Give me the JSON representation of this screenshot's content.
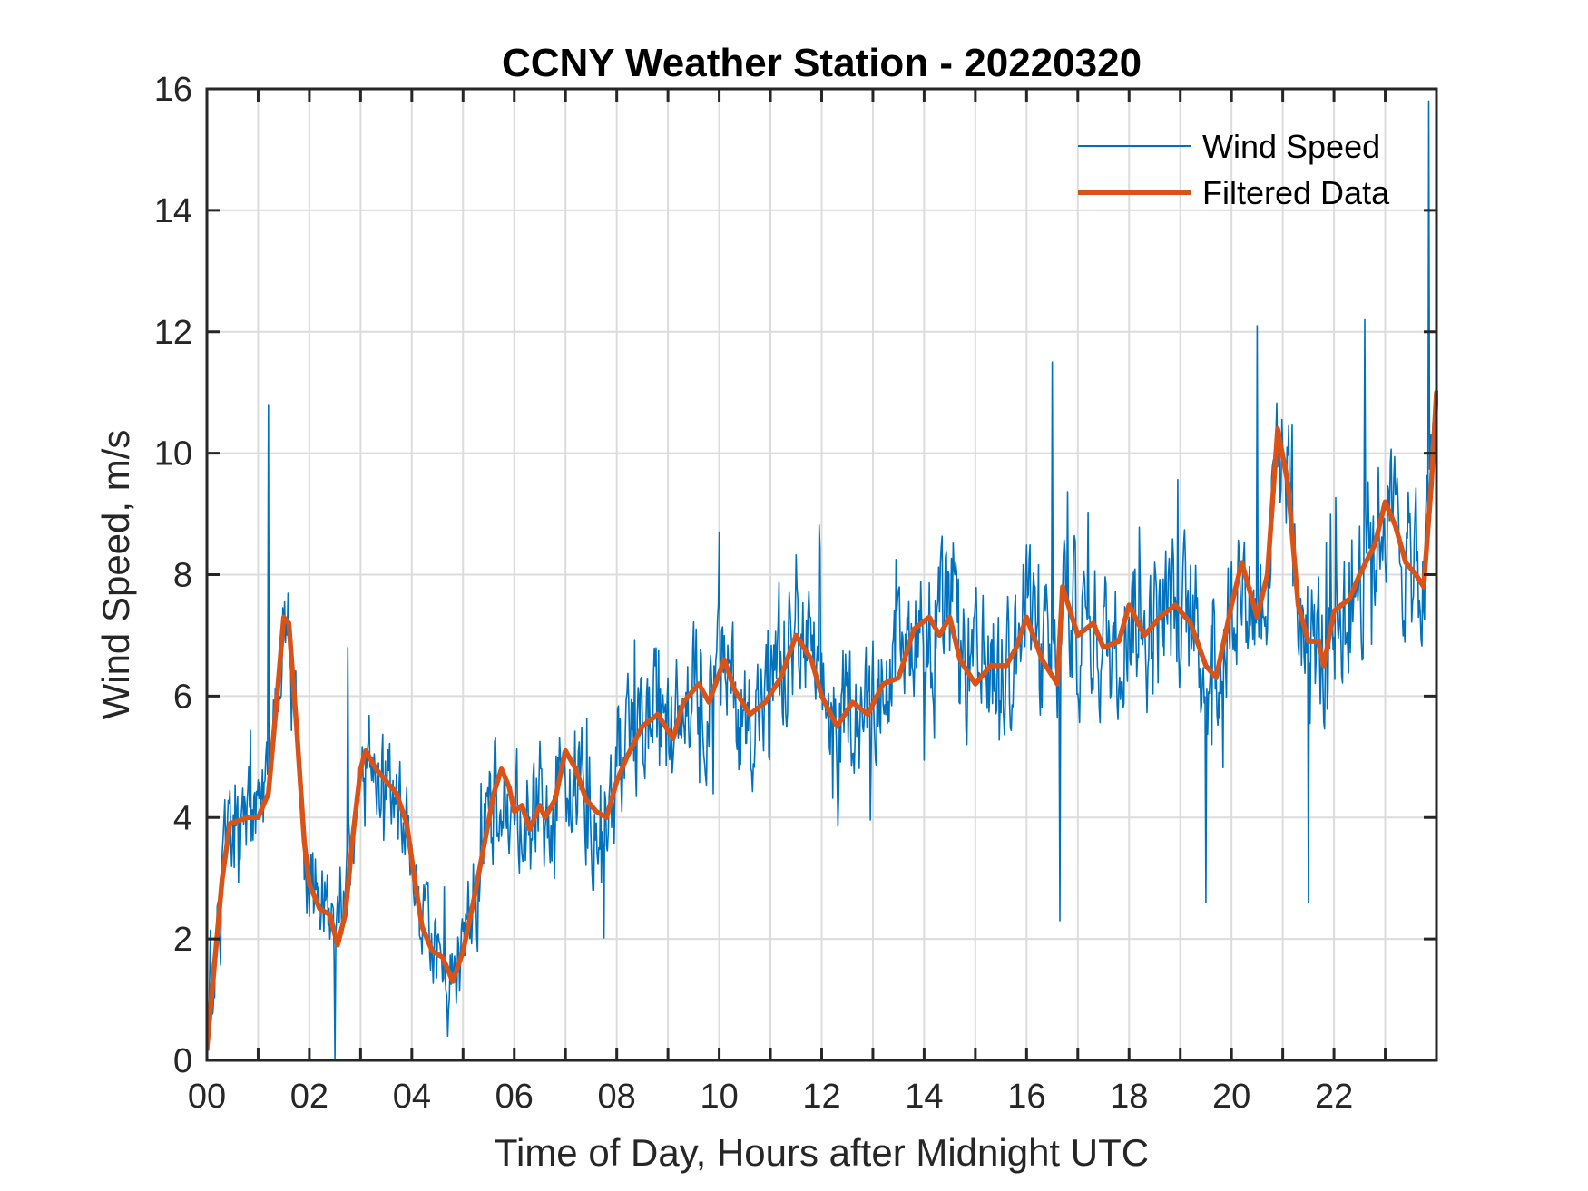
{
  "chart_data": {
    "type": "line",
    "title": "CCNY Weather Station - 20220320",
    "xlabel": "Time of Day, Hours after Midnight UTC",
    "ylabel": "Wind Speed, m/s",
    "xlim": [
      0,
      24
    ],
    "ylim": [
      0,
      16
    ],
    "x_ticks": [
      0,
      2,
      4,
      6,
      8,
      10,
      12,
      14,
      16,
      18,
      20,
      22
    ],
    "x_tick_labels": [
      "00",
      "02",
      "04",
      "06",
      "08",
      "10",
      "12",
      "14",
      "16",
      "18",
      "20",
      "22"
    ],
    "x_minor_grid_step_hours": 1,
    "y_ticks": [
      0,
      2,
      4,
      6,
      8,
      10,
      12,
      14,
      16
    ],
    "y_tick_labels": [
      "0",
      "2",
      "4",
      "6",
      "8",
      "10",
      "12",
      "14",
      "16"
    ],
    "grid": true,
    "legend": {
      "placement": "top-right",
      "entries": [
        "Wind Speed",
        "Filtered Data"
      ]
    },
    "series": [
      {
        "name": "Wind Speed",
        "color": "#0072BD",
        "style": "thin-line",
        "description": "High-frequency raw wind speed samples fluctuating around the filtered curve",
        "noise_amplitude_m_s": 1.6,
        "notable_spikes": [
          {
            "x": 1.2,
            "y": 10.8
          },
          {
            "x": 2.75,
            "y": 6.8
          },
          {
            "x": 2.5,
            "y": 0.0
          },
          {
            "x": 4.7,
            "y": 0.4
          },
          {
            "x": 10.0,
            "y": 8.7
          },
          {
            "x": 16.5,
            "y": 11.5
          },
          {
            "x": 16.65,
            "y": 2.3
          },
          {
            "x": 19.5,
            "y": 2.6
          },
          {
            "x": 20.5,
            "y": 12.1
          },
          {
            "x": 21.5,
            "y": 2.6
          },
          {
            "x": 22.6,
            "y": 12.2
          },
          {
            "x": 23.85,
            "y": 15.8
          }
        ]
      },
      {
        "name": "Filtered Data",
        "color": "#D95319",
        "style": "thick-line",
        "x": [
          0,
          0.3,
          0.45,
          0.8,
          1.0,
          1.2,
          1.35,
          1.5,
          1.6,
          1.75,
          1.9,
          2.0,
          2.2,
          2.4,
          2.55,
          2.7,
          2.85,
          3.0,
          3.1,
          3.3,
          3.5,
          3.7,
          3.9,
          4.05,
          4.2,
          4.4,
          4.6,
          4.8,
          5.0,
          5.2,
          5.4,
          5.6,
          5.75,
          5.9,
          6.0,
          6.15,
          6.3,
          6.5,
          6.6,
          6.8,
          7.0,
          7.2,
          7.4,
          7.6,
          7.8,
          8.0,
          8.2,
          8.5,
          8.8,
          9.1,
          9.3,
          9.6,
          9.8,
          10.1,
          10.3,
          10.6,
          10.9,
          11.2,
          11.5,
          11.8,
          12.0,
          12.3,
          12.6,
          12.9,
          13.2,
          13.5,
          13.8,
          14.1,
          14.3,
          14.5,
          14.7,
          15.0,
          15.3,
          15.6,
          15.8,
          16.0,
          16.3,
          16.6,
          16.7,
          17.0,
          17.3,
          17.5,
          17.8,
          18.0,
          18.3,
          18.6,
          18.9,
          19.2,
          19.5,
          19.7,
          20.0,
          20.2,
          20.5,
          20.7,
          20.9,
          21.1,
          21.3,
          21.5,
          21.7,
          21.8,
          22.0,
          22.3,
          22.5,
          22.8,
          23.0,
          23.2,
          23.4,
          23.6,
          23.75,
          23.9,
          24.0
        ],
        "y": [
          0.2,
          3.0,
          3.9,
          4.0,
          4.0,
          4.4,
          5.8,
          7.3,
          7.2,
          5.5,
          3.6,
          2.9,
          2.5,
          2.4,
          1.9,
          2.4,
          3.7,
          4.8,
          5.1,
          4.8,
          4.6,
          4.4,
          3.9,
          3.0,
          2.2,
          1.8,
          1.7,
          1.3,
          1.8,
          2.6,
          3.5,
          4.4,
          4.8,
          4.5,
          4.1,
          4.2,
          3.8,
          4.2,
          4.0,
          4.3,
          5.1,
          4.8,
          4.3,
          4.1,
          4.0,
          4.6,
          5.0,
          5.5,
          5.7,
          5.3,
          5.9,
          6.2,
          5.9,
          6.6,
          6.1,
          5.7,
          5.9,
          6.3,
          7.0,
          6.6,
          6.0,
          5.5,
          5.9,
          5.7,
          6.2,
          6.3,
          7.1,
          7.3,
          7.0,
          7.3,
          6.6,
          6.2,
          6.5,
          6.5,
          6.8,
          7.3,
          6.6,
          6.2,
          7.8,
          7.0,
          7.2,
          6.8,
          6.9,
          7.5,
          7.0,
          7.3,
          7.5,
          7.2,
          6.5,
          6.3,
          7.5,
          8.2,
          7.3,
          8.0,
          10.4,
          9.5,
          7.5,
          6.9,
          6.9,
          6.5,
          7.4,
          7.6,
          8.0,
          8.5,
          9.2,
          8.8,
          8.2,
          8.0,
          7.8,
          9.5,
          11.0
        ]
      }
    ]
  }
}
